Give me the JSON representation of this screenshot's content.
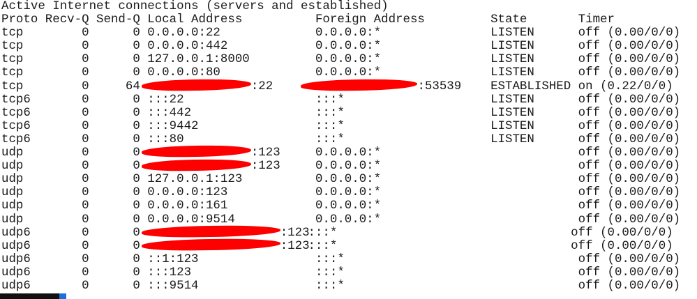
{
  "title": "Active Internet connections (servers and established)",
  "headers": {
    "proto": "Proto",
    "recvq": "Recv-Q",
    "sendq": "Send-Q",
    "local": "Local Address",
    "foreign": "Foreign Address",
    "state": "State",
    "timer": "Timer"
  },
  "rows": [
    {
      "proto": "tcp",
      "recvq": "0",
      "sendq": "0",
      "local": "0.0.0.0:22",
      "foreign": "0.0.0.0:*",
      "state": "LISTEN",
      "timer": "off (0.00/0/0)"
    },
    {
      "proto": "tcp",
      "recvq": "0",
      "sendq": "0",
      "local": "0.0.0.0:442",
      "foreign": "0.0.0.0:*",
      "state": "LISTEN",
      "timer": "off (0.00/0/0)"
    },
    {
      "proto": "tcp",
      "recvq": "0",
      "sendq": "0",
      "local": "127.0.0.1:8000",
      "foreign": "0.0.0.0:*",
      "state": "LISTEN",
      "timer": "off (0.00/0/0)"
    },
    {
      "proto": "tcp",
      "recvq": "0",
      "sendq": "0",
      "local": "0.0.0.0:80",
      "foreign": "0.0.0.0:*",
      "state": "LISTEN",
      "timer": "off (0.00/0/0)"
    },
    {
      "proto": "tcp",
      "recvq": "0",
      "sendq": "64",
      "local": ":22",
      "local_redacted": true,
      "foreign": ":53539",
      "foreign_redacted": true,
      "state": "ESTABLISHED",
      "timer": "on (0.22/0/0)"
    },
    {
      "proto": "tcp6",
      "recvq": "0",
      "sendq": "0",
      "local": ":::22",
      "foreign": ":::*",
      "state": "LISTEN",
      "timer": "off (0.00/0/0)"
    },
    {
      "proto": "tcp6",
      "recvq": "0",
      "sendq": "0",
      "local": ":::442",
      "foreign": ":::*",
      "state": "LISTEN",
      "timer": "off (0.00/0/0)"
    },
    {
      "proto": "tcp6",
      "recvq": "0",
      "sendq": "0",
      "local": ":::9442",
      "foreign": ":::*",
      "state": "LISTEN",
      "timer": "off (0.00/0/0)"
    },
    {
      "proto": "tcp6",
      "recvq": "0",
      "sendq": "0",
      "local": ":::80",
      "foreign": ":::*",
      "state": "LISTEN",
      "timer": "off (0.00/0/0)"
    },
    {
      "proto": "udp",
      "recvq": "0",
      "sendq": "0",
      "local": ":123",
      "local_redacted": true,
      "foreign": "0.0.0.0:*",
      "state": "",
      "timer": "off (0.00/0/0)"
    },
    {
      "proto": "udp",
      "recvq": "0",
      "sendq": "0",
      "local": ":123",
      "local_redacted": true,
      "foreign": "0.0.0.0:*",
      "state": "",
      "timer": "off (0.00/0/0)"
    },
    {
      "proto": "udp",
      "recvq": "0",
      "sendq": "0",
      "local": "127.0.0.1:123",
      "foreign": "0.0.0.0:*",
      "state": "",
      "timer": "off (0.00/0/0)"
    },
    {
      "proto": "udp",
      "recvq": "0",
      "sendq": "0",
      "local": "0.0.0.0:123",
      "foreign": "0.0.0.0:*",
      "state": "",
      "timer": "off (0.00/0/0)"
    },
    {
      "proto": "udp",
      "recvq": "0",
      "sendq": "0",
      "local": "0.0.0.0:161",
      "foreign": "0.0.0.0:*",
      "state": "",
      "timer": "off (0.00/0/0)"
    },
    {
      "proto": "udp",
      "recvq": "0",
      "sendq": "0",
      "local": "0.0.0.0:9514",
      "foreign": "0.0.0.0:*",
      "state": "",
      "timer": "off (0.00/0/0)"
    },
    {
      "proto": "udp6",
      "recvq": "0",
      "sendq": "0",
      "local": ":123",
      "local_redacted": true,
      "foreign": ":::*",
      "state": "",
      "timer": "off (0.00/0/0)"
    },
    {
      "proto": "udp6",
      "recvq": "0",
      "sendq": "0",
      "local": ":123",
      "local_redacted": true,
      "foreign": ":::*",
      "state": "",
      "timer": "off (0.00/0/0)"
    },
    {
      "proto": "udp6",
      "recvq": "0",
      "sendq": "0",
      "local": "::1:123",
      "foreign": ":::*",
      "state": "",
      "timer": "off (0.00/0/0)"
    },
    {
      "proto": "udp6",
      "recvq": "0",
      "sendq": "0",
      "local": ":::123",
      "foreign": ":::*",
      "state": "",
      "timer": "off (0.00/0/0)"
    },
    {
      "proto": "udp6",
      "recvq": "0",
      "sendq": "0",
      "local": ":::9514",
      "foreign": ":::*",
      "state": "",
      "timer": "off (0.00/0/0)"
    }
  ],
  "colors": {
    "redaction": "#ff0000",
    "text": "#1a1a1a",
    "taskbar": "#111111",
    "taskbar_accent": "#1e6fd9"
  }
}
